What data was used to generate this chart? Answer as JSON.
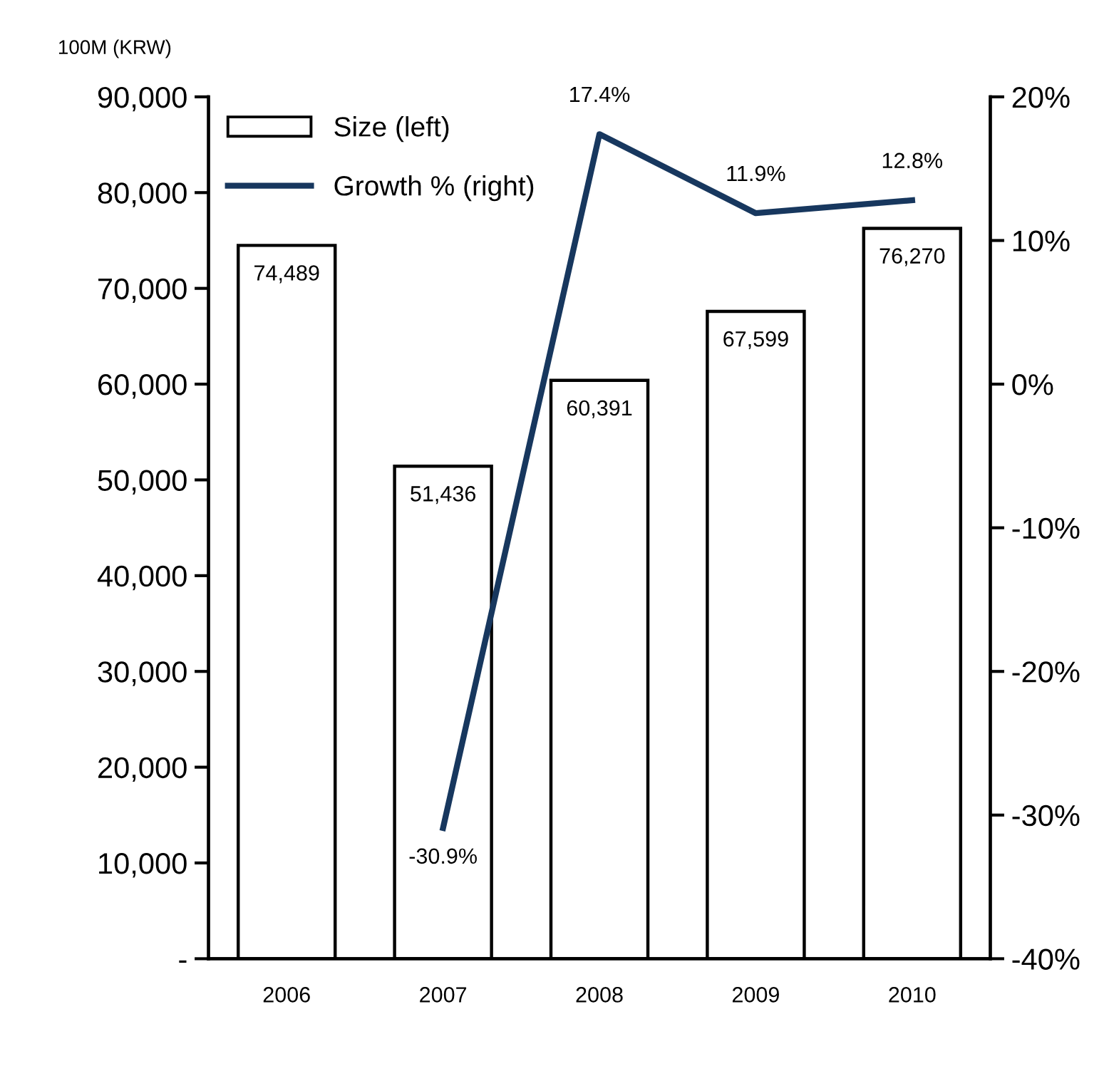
{
  "chart_data": {
    "type": "bar",
    "ylabel": "100M (KRW)",
    "categories": [
      "2006",
      "2007",
      "2008",
      "2009",
      "2010"
    ],
    "series": [
      {
        "name": "Size (left)",
        "color": "#ffffff",
        "values": [
          74489,
          51436,
          60391,
          67599,
          76270
        ],
        "value_labels": [
          "74,489",
          "51,436",
          "60,391",
          "67,599",
          "76,270"
        ]
      },
      {
        "name": "Growth % (right)",
        "type": "line",
        "axis": "y2",
        "color": "#17375e",
        "values": [
          null,
          -30.9,
          17.4,
          11.9,
          12.8
        ],
        "value_labels": [
          null,
          "-30.9%",
          "17.4%",
          "11.9%",
          "12.8%"
        ]
      }
    ],
    "ylim": [
      0,
      90000
    ],
    "yticks": [
      {
        "value": 0,
        "label": "-"
      },
      {
        "value": 10000,
        "label": "10,000"
      },
      {
        "value": 20000,
        "label": "20,000"
      },
      {
        "value": 30000,
        "label": "30,000"
      },
      {
        "value": 40000,
        "label": "40,000"
      },
      {
        "value": 50000,
        "label": "50,000"
      },
      {
        "value": 60000,
        "label": "60,000"
      },
      {
        "value": 70000,
        "label": "70,000"
      },
      {
        "value": 80000,
        "label": "80,000"
      },
      {
        "value": 90000,
        "label": "90,000"
      }
    ],
    "y2lim": [
      -40,
      20
    ],
    "y2ticks": [
      {
        "value": -40,
        "label": "-40%"
      },
      {
        "value": -30,
        "label": "-30%"
      },
      {
        "value": -20,
        "label": "-20%"
      },
      {
        "value": -10,
        "label": "-10%"
      },
      {
        "value": 0,
        "label": "0%"
      },
      {
        "value": 10,
        "label": "10%"
      },
      {
        "value": 20,
        "label": "20%"
      }
    ],
    "legend": "top left",
    "grid": false,
    "marker": "none",
    "line_style": "solid"
  }
}
